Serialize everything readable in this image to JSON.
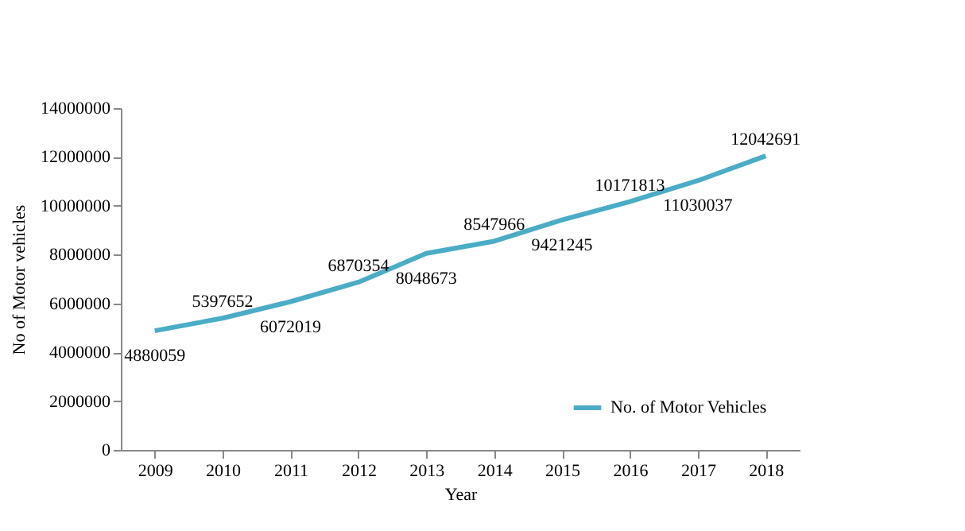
{
  "chart_data": {
    "type": "line",
    "xlabel": "Year",
    "ylabel": "No of Motor vehicles",
    "categories": [
      "2009",
      "2010",
      "2011",
      "2012",
      "2013",
      "2014",
      "2015",
      "2016",
      "2017",
      "2018"
    ],
    "series": [
      {
        "name": "No. of Motor Vehicles",
        "color": "#4bacc6",
        "values": [
          4880059,
          5397652,
          6072019,
          6870354,
          8048673,
          8547966,
          9421245,
          10171813,
          11030037,
          12042691
        ]
      }
    ],
    "ylim": [
      0,
      14000000
    ],
    "yticks": [
      0,
      2000000,
      4000000,
      6000000,
      8000000,
      10000000,
      12000000,
      14000000
    ],
    "data_labels": true,
    "legend": "bottom right",
    "grid": false,
    "marker": "none",
    "line_style": "solid"
  }
}
